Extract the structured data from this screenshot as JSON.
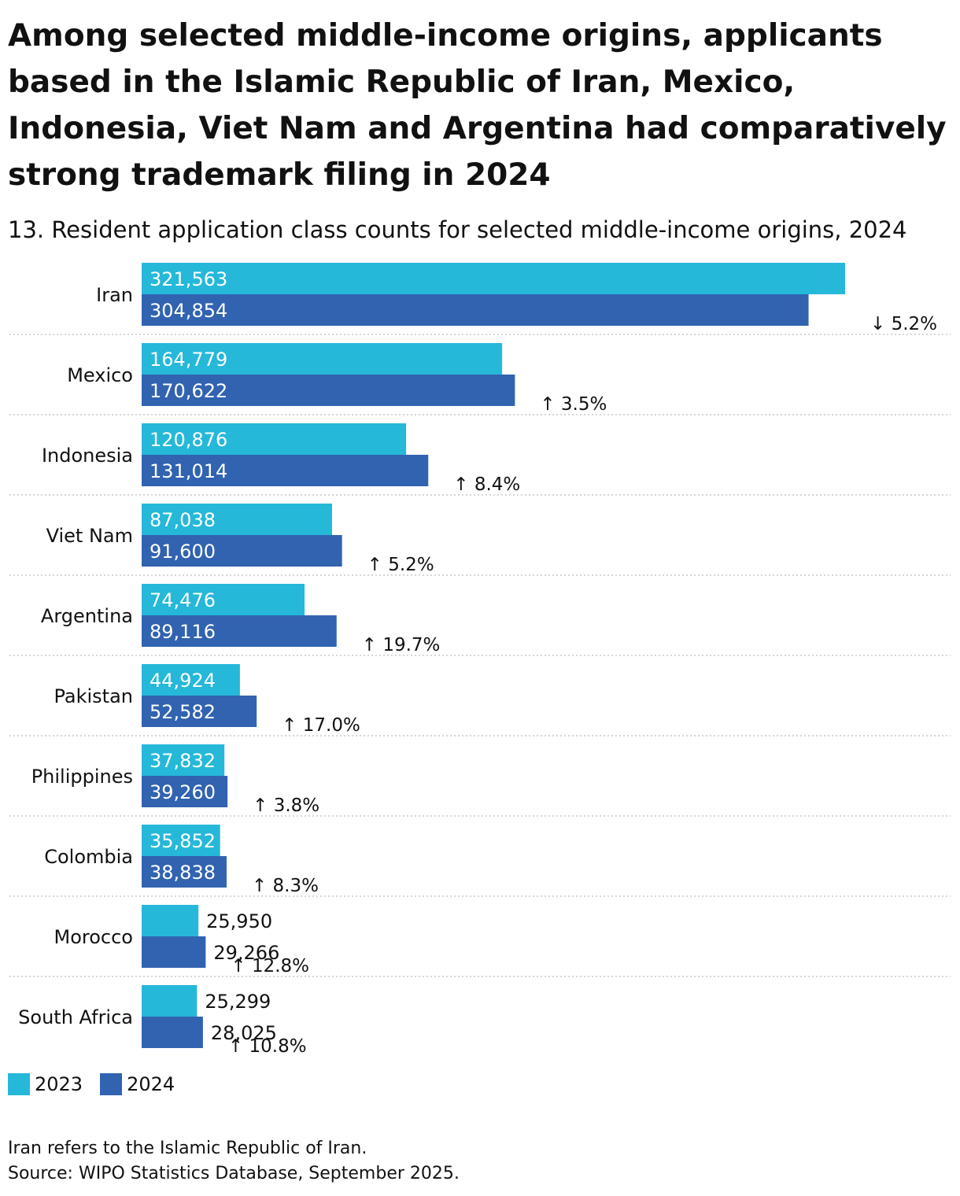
{
  "title": "Among selected middle-income origins, applicants based in the Islamic Republic of Iran, Mexico, Indonesia, Viet Nam and Argentina had comparatively strong trademark filing in 2024",
  "subtitle": "13. Resident application class counts for selected middle-income origins, 2024",
  "colors": {
    "series_2023": "#25b8d9",
    "series_2024": "#3163b0",
    "label_inside": "#ffffff",
    "label_outside": "#111111",
    "separator": "#c8c8c8"
  },
  "chart_data": {
    "type": "bar",
    "orientation": "horizontal",
    "categories": [
      "Iran",
      "Mexico",
      "Indonesia",
      "Viet Nam",
      "Argentina",
      "Pakistan",
      "Philippines",
      "Colombia",
      "Morocco",
      "South Africa"
    ],
    "series": [
      {
        "name": "2023",
        "values": [
          321563,
          164779,
          120876,
          87038,
          74476,
          44924,
          37832,
          35852,
          25950,
          25299
        ],
        "value_labels": [
          "321,563",
          "164,779",
          "120,876",
          "87,038",
          "74,476",
          "44,924",
          "37,832",
          "35,852",
          "25,950",
          "25,299"
        ]
      },
      {
        "name": "2024",
        "values": [
          304854,
          170622,
          131014,
          91600,
          89116,
          52582,
          39260,
          38838,
          29266,
          28025
        ],
        "value_labels": [
          "304,854",
          "170,622",
          "131,014",
          "91,600",
          "89,116",
          "52,582",
          "39,260",
          "38,838",
          "29,266",
          "28,025"
        ]
      }
    ],
    "growth_labels": [
      "↓ 5.2%",
      "↑ 3.5%",
      "↑ 8.4%",
      "↑ 5.2%",
      "↑ 19.7%",
      "↑ 17.0%",
      "↑ 3.8%",
      "↑ 8.3%",
      "↑ 12.8%",
      "↑ 10.8%"
    ],
    "legend": {
      "position": "bottom-left",
      "entries": [
        "2023",
        "2024"
      ]
    },
    "grid": false
  },
  "notes": [
    "Iran refers to the Islamic Republic of Iran.",
    "Source: WIPO Statistics Database, September 2025."
  ]
}
